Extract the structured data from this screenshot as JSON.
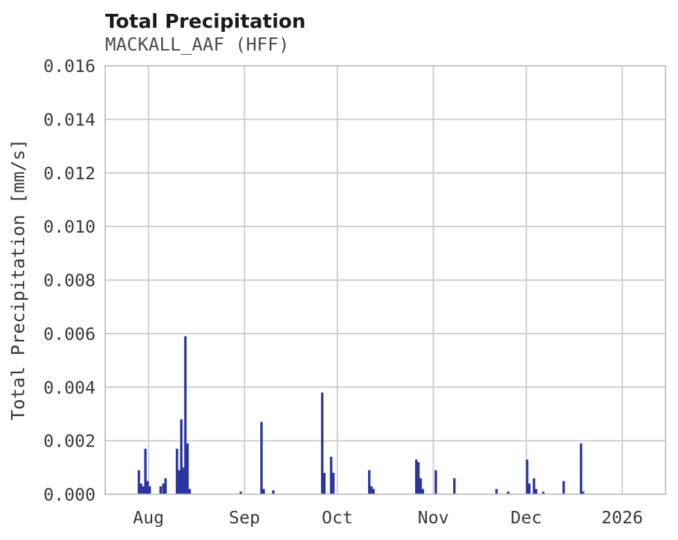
{
  "chart_data": {
    "type": "bar",
    "title": "Total Precipitation",
    "subtitle": "MACKALL_AAF (HFF)",
    "xlabel": "",
    "ylabel": "Total Precipitation [mm/s]",
    "ylim": [
      0,
      0.016
    ],
    "grid": true,
    "legend": "none",
    "bar_color": "#2a35a0",
    "grid_color": "#cccccc",
    "border_color": "#c4c4c4",
    "tick_color": "#3a3a3a",
    "y_ticks": [
      {
        "value": 0.0,
        "label": "0.000"
      },
      {
        "value": 0.002,
        "label": "0.002"
      },
      {
        "value": 0.004,
        "label": "0.004"
      },
      {
        "value": 0.006,
        "label": "0.006"
      },
      {
        "value": 0.008,
        "label": "0.008"
      },
      {
        "value": 0.01,
        "label": "0.010"
      },
      {
        "value": 0.012,
        "label": "0.012"
      },
      {
        "value": 0.014,
        "label": "0.014"
      },
      {
        "value": 0.016,
        "label": "0.016"
      }
    ],
    "x_domain_days": [
      0,
      181
    ],
    "x_ticks": [
      {
        "day": 14,
        "label": "Aug"
      },
      {
        "day": 45,
        "label": "Sep"
      },
      {
        "day": 75,
        "label": "Oct"
      },
      {
        "day": 106,
        "label": "Nov"
      },
      {
        "day": 136,
        "label": "Dec"
      },
      {
        "day": 167,
        "label": "2026"
      }
    ],
    "points_format": "[day_offset, precipitation_mm_per_s]",
    "points": [
      [
        10.9,
        0.0009
      ],
      [
        11.6,
        0.0004
      ],
      [
        12.3,
        0.0003
      ],
      [
        13.0,
        0.0017
      ],
      [
        13.7,
        0.0005
      ],
      [
        14.4,
        0.0003
      ],
      [
        17.9,
        0.0003
      ],
      [
        18.8,
        0.0004
      ],
      [
        19.5,
        0.0006
      ],
      [
        23.2,
        0.0017
      ],
      [
        23.9,
        0.0009
      ],
      [
        24.6,
        0.0028
      ],
      [
        25.3,
        0.001
      ],
      [
        25.9,
        0.0059
      ],
      [
        26.6,
        0.0019
      ],
      [
        27.3,
        0.0002
      ],
      [
        43.8,
        0.0001
      ],
      [
        50.5,
        0.0027
      ],
      [
        51.2,
        0.0002
      ],
      [
        54.3,
        0.00015
      ],
      [
        70.1,
        0.0038
      ],
      [
        70.8,
        0.0008
      ],
      [
        73.0,
        0.0014
      ],
      [
        73.7,
        0.0008
      ],
      [
        85.3,
        0.0009
      ],
      [
        86.0,
        0.0003
      ],
      [
        86.7,
        0.0002
      ],
      [
        100.5,
        0.0013
      ],
      [
        101.2,
        0.0012
      ],
      [
        101.9,
        0.0006
      ],
      [
        102.6,
        0.0002
      ],
      [
        106.8,
        0.0009
      ],
      [
        112.8,
        0.0006
      ],
      [
        126.4,
        0.0002
      ],
      [
        130.2,
        0.0001
      ],
      [
        136.3,
        0.0013
      ],
      [
        137.0,
        0.0004
      ],
      [
        138.5,
        0.0006
      ],
      [
        139.2,
        0.0002
      ],
      [
        141.5,
        0.0001
      ],
      [
        148.1,
        0.0005
      ],
      [
        153.7,
        0.0019
      ],
      [
        154.4,
        0.0001
      ]
    ]
  }
}
